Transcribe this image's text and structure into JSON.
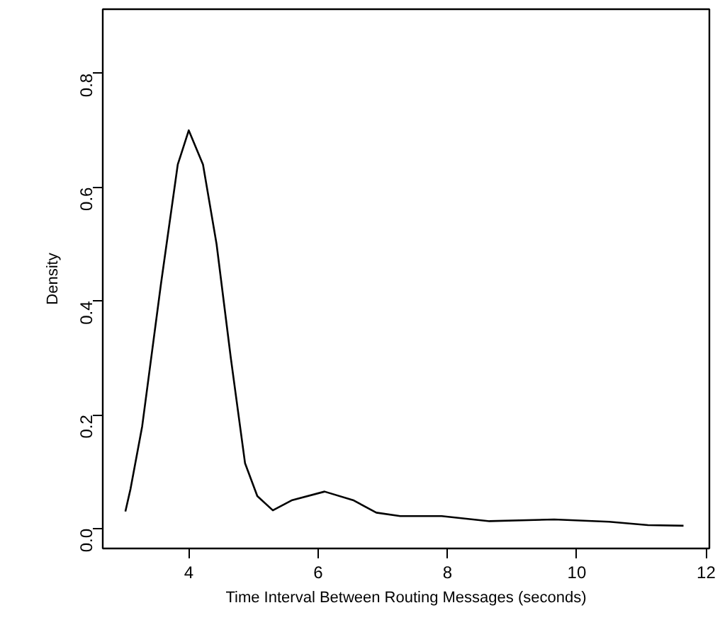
{
  "chart_data": {
    "type": "line",
    "xlabel": "Time Interval Between Routing Messages (seconds)",
    "ylabel": "Density",
    "x": [
      3.02,
      3.1,
      3.28,
      3.57,
      3.83,
      4.0,
      4.22,
      4.43,
      4.65,
      4.87,
      5.06,
      5.3,
      5.6,
      6.1,
      6.54,
      6.9,
      7.27,
      7.91,
      8.65,
      9.65,
      10.5,
      11.1,
      11.65
    ],
    "series": [
      {
        "color": "#000000",
        "values": [
          0.03,
          0.07,
          0.18,
          0.43,
          0.64,
          0.7,
          0.64,
          0.5,
          0.3,
          0.115,
          0.057,
          0.032,
          0.05,
          0.065,
          0.05,
          0.028,
          0.022,
          0.022,
          0.013,
          0.016,
          0.012,
          0.006,
          0.005
        ]
      }
    ],
    "xlim": [
      2.67,
      12.05
    ],
    "ylim": [
      -0.035,
      0.913
    ],
    "xticks": [
      4,
      6,
      8,
      10,
      12
    ],
    "yticks": [
      {
        "value": 0,
        "label": "0.0"
      },
      {
        "value": 0.2,
        "label": "0.2"
      },
      {
        "value": 0.4,
        "label": "0.4"
      },
      {
        "value": 0.6,
        "label": "0.6"
      },
      {
        "value": 0.8,
        "label": "0.8"
      }
    ],
    "grid": false,
    "line_style": "solid"
  }
}
